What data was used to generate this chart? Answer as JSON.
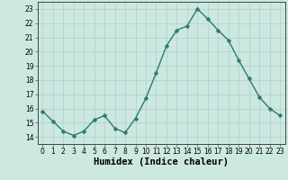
{
  "xlabel": "Humidex (Indice chaleur)",
  "ylabel": "",
  "x": [
    0,
    1,
    2,
    3,
    4,
    5,
    6,
    7,
    8,
    9,
    10,
    11,
    12,
    13,
    14,
    15,
    16,
    17,
    18,
    19,
    20,
    21,
    22,
    23
  ],
  "y": [
    15.8,
    15.1,
    14.4,
    14.1,
    14.4,
    15.2,
    15.5,
    14.6,
    14.3,
    15.3,
    16.7,
    18.5,
    20.4,
    21.5,
    21.8,
    23.0,
    22.3,
    21.5,
    20.8,
    19.4,
    18.1,
    16.8,
    16.0,
    15.5
  ],
  "line_color": "#2d7a6e",
  "marker": "D",
  "markersize": 2.5,
  "background_color": "#cce8e0",
  "grid_color_major": "#b0d4cc",
  "grid_color_minor": "#c8e0d8",
  "ylim": [
    13.5,
    23.5
  ],
  "xlim": [
    -0.5,
    23.5
  ],
  "yticks": [
    14,
    15,
    16,
    17,
    18,
    19,
    20,
    21,
    22,
    23
  ],
  "xticks": [
    0,
    1,
    2,
    3,
    4,
    5,
    6,
    7,
    8,
    9,
    10,
    11,
    12,
    13,
    14,
    15,
    16,
    17,
    18,
    19,
    20,
    21,
    22,
    23
  ],
  "tick_fontsize": 5.5,
  "xlabel_fontsize": 7.5,
  "linewidth": 1.0
}
